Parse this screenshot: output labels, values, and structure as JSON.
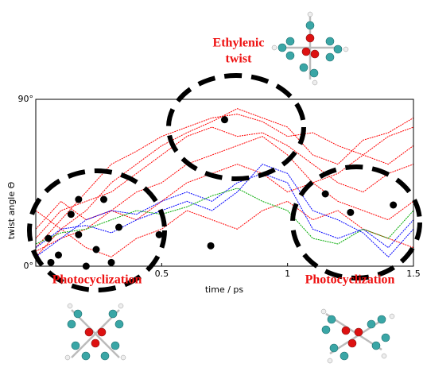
{
  "chart_data": [
    {
      "type": "line",
      "x": [
        0,
        0.1,
        0.2,
        0.3,
        0.4,
        0.5,
        0.6,
        0.7,
        0.8,
        0.9,
        1.0,
        1.1,
        1.2,
        1.3,
        1.4,
        1.5
      ],
      "series": [
        {
          "color": "#ff0000",
          "values": [
            10,
            25,
            40,
            55,
            62,
            70,
            75,
            80,
            82,
            78,
            70,
            72,
            65,
            60,
            70,
            75
          ]
        },
        {
          "color": "#ff0000",
          "values": [
            5,
            20,
            30,
            45,
            55,
            65,
            72,
            78,
            85,
            80,
            75,
            60,
            55,
            68,
            72,
            80
          ]
        },
        {
          "color": "#ff0000",
          "values": [
            15,
            30,
            35,
            40,
            50,
            60,
            70,
            75,
            70,
            72,
            65,
            55,
            45,
            40,
            50,
            55
          ]
        },
        {
          "color": "#ff0000",
          "values": [
            20,
            35,
            25,
            30,
            40,
            45,
            55,
            60,
            65,
            70,
            60,
            45,
            35,
            30,
            25,
            35
          ]
        },
        {
          "color": "#ff0000",
          "values": [
            8,
            15,
            20,
            30,
            25,
            35,
            45,
            50,
            55,
            50,
            40,
            45,
            50,
            60,
            55,
            65
          ]
        },
        {
          "color": "#ff0000",
          "values": [
            30,
            20,
            10,
            5,
            15,
            20,
            30,
            25,
            20,
            30,
            35,
            25,
            30,
            20,
            15,
            10
          ]
        },
        {
          "color": "#0000ff",
          "values": [
            5,
            15,
            25,
            30,
            28,
            35,
            40,
            35,
            45,
            50,
            45,
            20,
            15,
            20,
            10,
            25
          ]
        },
        {
          "color": "#0000ff",
          "values": [
            10,
            20,
            22,
            18,
            25,
            30,
            35,
            30,
            40,
            55,
            50,
            30,
            25,
            18,
            5,
            20
          ]
        },
        {
          "color": "#00aa00",
          "values": [
            12,
            18,
            20,
            25,
            30,
            28,
            32,
            38,
            42,
            35,
            30,
            15,
            12,
            20,
            15,
            30
          ]
        }
      ],
      "xlim": [
        0,
        1.5
      ],
      "ylim": [
        0,
        90
      ],
      "xticks": [
        0.5,
        1,
        1.5
      ],
      "yticks": [
        {
          "value": 0,
          "label": "0°"
        },
        {
          "value": 90,
          "label": "90°"
        }
      ],
      "xlabel": "time / ps",
      "ylabel": "twist angle Θ",
      "annotations": [
        "Ethylenic",
        "twist",
        "Photocyclization",
        "Photocyclization"
      ]
    },
    {
      "type": "scatter",
      "color": "#000000",
      "x": [
        0.75,
        0.695,
        0.49,
        1.15,
        1.25,
        1.42,
        0.05,
        0.09,
        0.17,
        0.24,
        0.14,
        0.33,
        0.2,
        0.3,
        0.06,
        0.27,
        0.17
      ],
      "y": [
        79,
        11,
        17,
        39,
        29,
        33,
        15,
        6,
        17,
        9,
        28,
        21,
        0,
        2,
        2,
        36,
        36
      ]
    }
  ]
}
